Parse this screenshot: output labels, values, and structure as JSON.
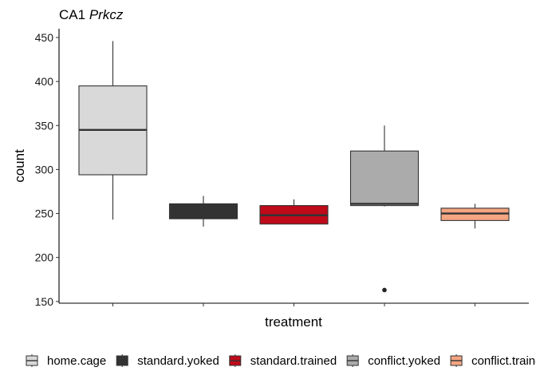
{
  "chart_data": {
    "type": "boxplot",
    "title": "CA1",
    "title_italic": "Prkcz",
    "xlabel": "treatment",
    "ylabel": "count",
    "ylim": [
      148,
      460
    ],
    "yticks": [
      150,
      200,
      250,
      300,
      350,
      400,
      450
    ],
    "grid": false,
    "legend_position": "bottom",
    "series": [
      {
        "name": "home.cage",
        "color": "#d9d9d9",
        "min": 243,
        "q1": 294,
        "median": 345,
        "q3": 395,
        "max": 446,
        "outliers": []
      },
      {
        "name": "standard.yoked",
        "color": "#333333",
        "min": 235,
        "q1": 244,
        "median": 253,
        "q3": 261,
        "max": 270,
        "outliers": []
      },
      {
        "name": "standard.trained",
        "color": "#bf0a1a",
        "min": 238,
        "q1": 238,
        "median": 248,
        "q3": 259,
        "max": 266,
        "outliers": []
      },
      {
        "name": "conflict.yoked",
        "color": "#ababab",
        "min": 258,
        "q1": 259,
        "median": 261,
        "q3": 321,
        "max": 350,
        "outliers": [
          163
        ]
      },
      {
        "name": "conflict.trained",
        "color": "#f4a582",
        "min": 233,
        "q1": 242,
        "median": 250,
        "q3": 256,
        "max": 261,
        "outliers": []
      }
    ]
  }
}
